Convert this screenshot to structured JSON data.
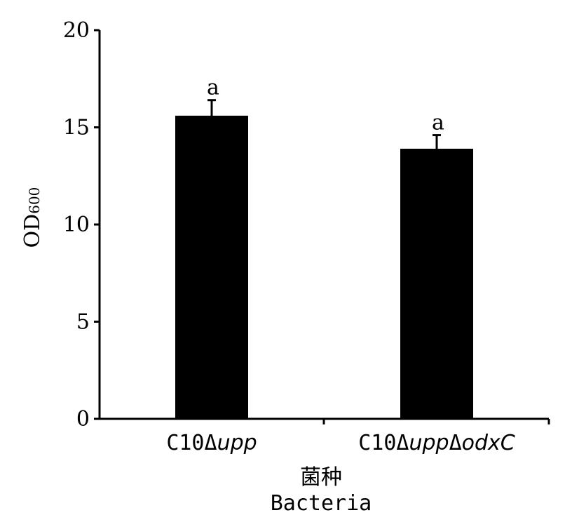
{
  "chart_data": {
    "type": "bar",
    "categories": [
      {
        "prefix": "C10",
        "parts": [
          {
            "delta": "Δ",
            "gene": "upp"
          }
        ]
      },
      {
        "prefix": "C10",
        "parts": [
          {
            "delta": "Δ",
            "gene": "upp"
          },
          {
            "delta": "Δ",
            "gene": "odxC"
          }
        ]
      }
    ],
    "values": [
      15.6,
      13.9
    ],
    "errors": [
      0.8,
      0.7
    ],
    "significance": [
      "a",
      "a"
    ],
    "ylim": [
      0,
      20
    ],
    "yticks": [
      0,
      5,
      10,
      15,
      20
    ],
    "ylabel": {
      "main": "OD",
      "subscript": "600"
    },
    "xlabel": {
      "line1": "菌种",
      "line2": "Bacteria"
    },
    "bar_color": "#000000",
    "grid": false,
    "legend": "none"
  }
}
